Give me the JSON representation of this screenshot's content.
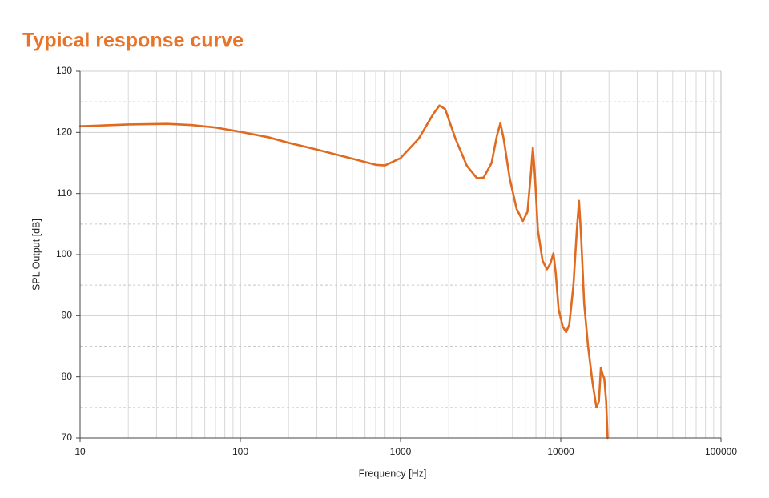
{
  "chart_data": {
    "type": "line",
    "title": "Typical response curve",
    "x_label": "Frequency [Hz]",
    "y_label": "SPL Output [dB]",
    "xscale": "log",
    "xlim": [
      10,
      100000
    ],
    "xticks": [
      10,
      100,
      1000,
      10000,
      100000
    ],
    "ylim": [
      70,
      130
    ],
    "yticks": [
      70,
      80,
      90,
      100,
      110,
      120,
      130
    ],
    "grid": true,
    "minor_grid": true,
    "series": [
      {
        "color": "#e06a1f",
        "x": [
          10,
          20,
          35,
          50,
          70,
          100,
          150,
          200,
          300,
          500,
          700,
          800,
          1000,
          1300,
          1600,
          1750,
          1900,
          2200,
          2600,
          3000,
          3300,
          3700,
          4000,
          4200,
          4400,
          4800,
          5300,
          5800,
          6200,
          6500,
          6700,
          6900,
          7200,
          7700,
          8200,
          8600,
          9000,
          9300,
          9700,
          10300,
          10800,
          11300,
          12000,
          12600,
          13000,
          13400,
          14000,
          14800,
          15800,
          16700,
          17300,
          17800,
          18200,
          18700,
          19200,
          19600
        ],
        "values": [
          121,
          121.3,
          121.4,
          121.2,
          120.8,
          120.1,
          119.2,
          118.3,
          117.2,
          115.7,
          114.7,
          114.6,
          115.8,
          119,
          123,
          124.4,
          123.8,
          119,
          114.5,
          112.5,
          112.6,
          115,
          119.5,
          121.5,
          119,
          112.5,
          107.5,
          105.5,
          107,
          113,
          117.5,
          113,
          104,
          99,
          97.6,
          98.5,
          100.2,
          97,
          91,
          88.2,
          87.3,
          88.5,
          95,
          104,
          108.8,
          103,
          92,
          85,
          79,
          75,
          76,
          81.5,
          80.5,
          79.7,
          76,
          70
        ]
      }
    ]
  }
}
